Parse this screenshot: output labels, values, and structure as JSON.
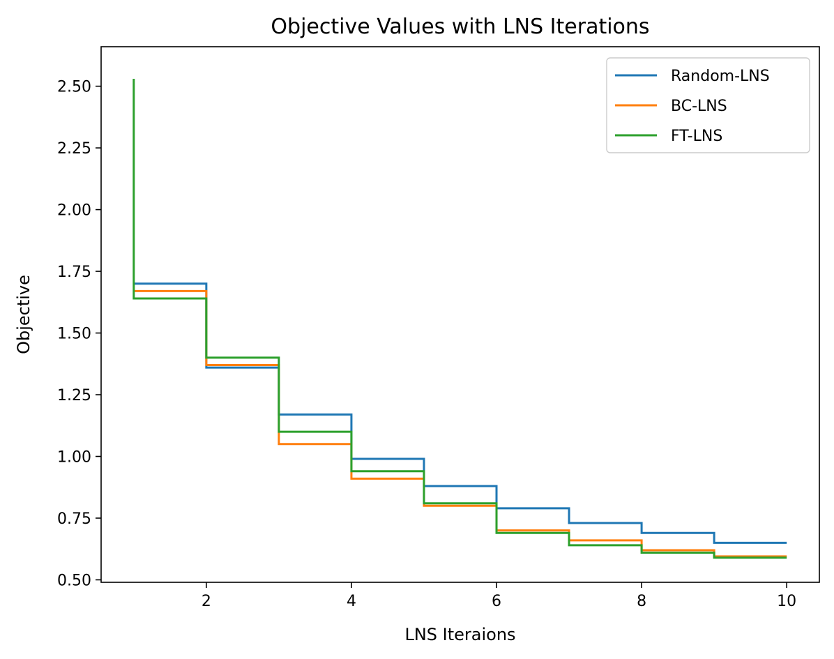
{
  "chart_data": {
    "type": "line",
    "step": "post",
    "title": "Objective Values with LNS Iterations",
    "xlabel": "LNS Iteraions",
    "ylabel": "Objective",
    "xlim": [
      0.55,
      10.45
    ],
    "ylim": [
      0.49,
      2.66
    ],
    "xticks": [
      2,
      4,
      6,
      8,
      10
    ],
    "xtick_labels": [
      "2",
      "4",
      "6",
      "8",
      "10"
    ],
    "yticks": [
      0.5,
      0.75,
      1.0,
      1.25,
      1.5,
      1.75,
      2.0,
      2.25,
      2.5
    ],
    "ytick_labels": [
      "0.50",
      "0.75",
      "1.00",
      "1.25",
      "1.50",
      "1.75",
      "2.00",
      "2.25",
      "2.50"
    ],
    "grid": false,
    "legend_position": "top-right",
    "x": [
      1,
      2,
      3,
      4,
      5,
      6,
      7,
      8,
      9,
      10
    ],
    "series": [
      {
        "name": "Random-LNS",
        "color": "#1f77b4",
        "values": [
          1.7,
          1.36,
          1.17,
          0.99,
          0.88,
          0.79,
          0.73,
          0.69,
          0.65,
          0.65
        ]
      },
      {
        "name": "BC-LNS",
        "color": "#ff7f0e",
        "values": [
          1.67,
          1.37,
          1.05,
          0.91,
          0.8,
          0.7,
          0.66,
          0.62,
          0.595,
          0.595
        ]
      },
      {
        "name": "FT-LNS",
        "color": "#2ca02c",
        "initial_value": 2.53,
        "values": [
          1.64,
          1.4,
          1.1,
          0.94,
          0.81,
          0.69,
          0.64,
          0.61,
          0.59,
          0.59
        ]
      }
    ]
  }
}
